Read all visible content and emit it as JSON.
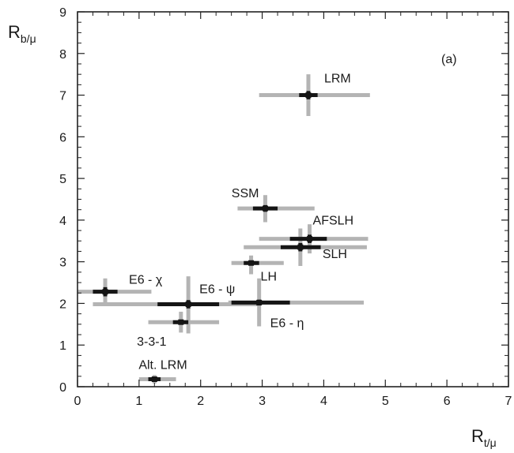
{
  "chart_data": {
    "type": "scatter",
    "panel_label": "(a)",
    "xlabel": {
      "main": "R",
      "sub": "t/μ"
    },
    "ylabel": {
      "main": "R",
      "sub": "b/μ"
    },
    "xlim": [
      0,
      7
    ],
    "ylim": [
      0,
      9
    ],
    "xticks": [
      "0",
      "1",
      "2",
      "3",
      "4",
      "5",
      "6",
      "7"
    ],
    "yticks": [
      "0",
      "1",
      "2",
      "3",
      "4",
      "5",
      "6",
      "7",
      "8",
      "9"
    ],
    "grid": false,
    "colors": {
      "inner_error": "#151515",
      "outer_error": "#b4b4b4",
      "axis": "#222222"
    },
    "points": [
      {
        "label": "LRM",
        "x": 3.75,
        "y": 7.0,
        "ix": [
          3.6,
          3.9
        ],
        "iy": [
          6.9,
          7.1
        ],
        "ox": [
          2.95,
          4.75
        ],
        "oy": [
          6.5,
          7.5
        ]
      },
      {
        "label": "SSM",
        "x": 3.05,
        "y": 4.28,
        "ix": [
          2.85,
          3.25
        ],
        "iy": [
          4.2,
          4.36
        ],
        "ox": [
          2.6,
          3.85
        ],
        "oy": [
          3.95,
          4.6
        ]
      },
      {
        "label": "AFSLH",
        "x": 3.77,
        "y": 3.55,
        "ix": [
          3.45,
          4.05
        ],
        "iy": [
          3.45,
          3.65
        ],
        "ox": [
          2.95,
          4.72
        ],
        "oy": [
          3.2,
          3.9
        ]
      },
      {
        "label": "SLH",
        "x": 3.62,
        "y": 3.35,
        "ix": [
          3.3,
          3.95
        ],
        "iy": [
          3.25,
          3.45
        ],
        "ox": [
          2.7,
          4.7
        ],
        "oy": [
          2.9,
          3.8
        ]
      },
      {
        "label": "LH",
        "x": 2.82,
        "y": 2.97,
        "ix": [
          2.7,
          2.95
        ],
        "iy": [
          2.92,
          3.02
        ],
        "ox": [
          2.5,
          3.35
        ],
        "oy": [
          2.7,
          3.15
        ]
      },
      {
        "label": "E6 - χ",
        "x": 0.45,
        "y": 2.28,
        "ix": [
          0.25,
          0.65
        ],
        "iy": [
          2.17,
          2.39
        ],
        "ox": [
          0.0,
          1.2
        ],
        "oy": [
          1.95,
          2.6
        ]
      },
      {
        "label": "E6 - ψ",
        "x": 1.8,
        "y": 1.98,
        "ix": [
          1.3,
          2.3
        ],
        "iy": [
          1.88,
          2.08
        ],
        "ox": [
          0.25,
          2.95
        ],
        "oy": [
          1.28,
          2.65
        ]
      },
      {
        "label": "E6 - η",
        "x": 2.95,
        "y": 2.02,
        "ix": [
          2.5,
          3.45
        ],
        "iy": [
          1.95,
          2.09
        ],
        "ox": [
          2.45,
          4.65
        ],
        "oy": [
          1.45,
          2.6
        ]
      },
      {
        "label": "3-3-1",
        "x": 1.68,
        "y": 1.55,
        "ix": [
          1.55,
          1.8
        ],
        "iy": [
          1.5,
          1.6
        ],
        "ox": [
          1.15,
          2.3
        ],
        "oy": [
          1.3,
          1.8
        ]
      },
      {
        "label": "Alt. LRM",
        "x": 1.25,
        "y": 0.18,
        "ix": [
          1.15,
          1.35
        ],
        "iy": [
          0.14,
          0.22
        ],
        "ox": [
          1.0,
          1.6
        ],
        "oy": [
          0.08,
          0.28
        ]
      }
    ]
  }
}
